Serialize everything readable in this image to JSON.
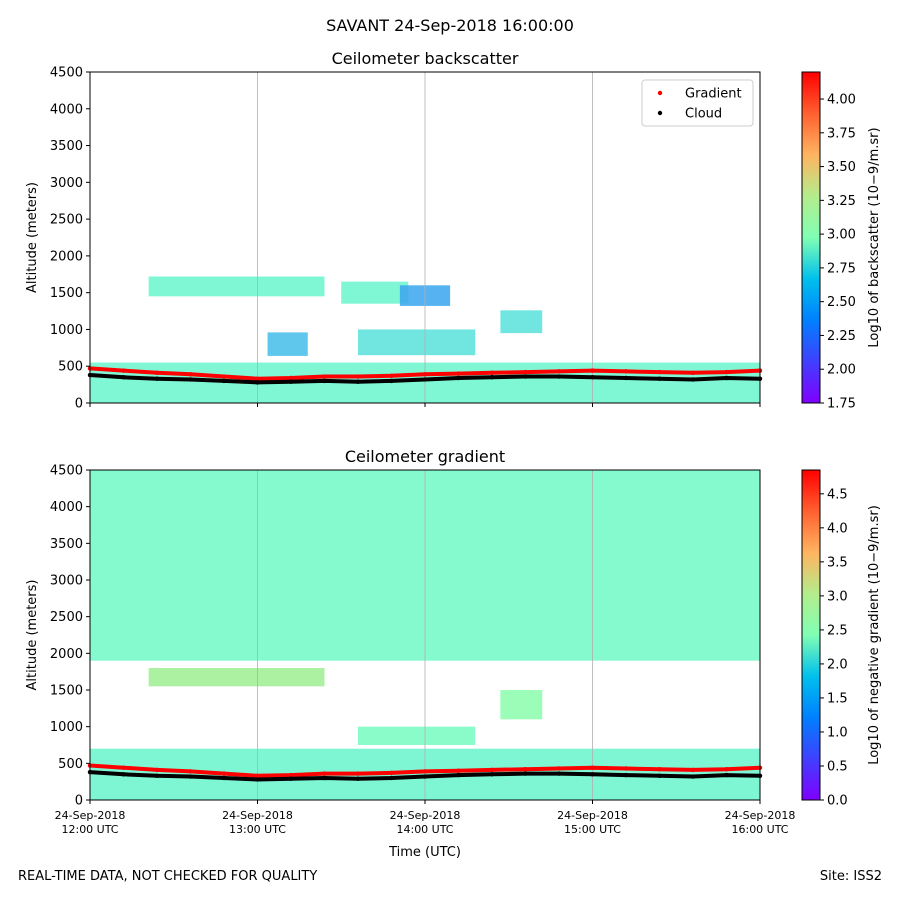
{
  "figure": {
    "suptitle": "SAVANT 24-Sep-2018 16:00:00",
    "footer_left": "REAL-TIME DATA, NOT CHECKED FOR QUALITY",
    "footer_right": "Site: ISS2"
  },
  "chart_data": [
    {
      "type": "heatmap",
      "title": "Ceilometer backscatter",
      "xlabel": "",
      "ylabel": "Altitude (meters)",
      "x_ticks": [
        "24-Sep-2018\n12:00 UTC",
        "24-Sep-2018\n13:00 UTC",
        "24-Sep-2018\n14:00 UTC",
        "24-Sep-2018\n15:00 UTC",
        "24-Sep-2018\n16:00 UTC"
      ],
      "x_tick_labels_visible": false,
      "xlim": [
        12.0,
        16.0
      ],
      "y_ticks": [
        0,
        500,
        1000,
        1500,
        2000,
        2500,
        3000,
        3500,
        4000,
        4500
      ],
      "ylim": [
        0,
        4500
      ],
      "grid": "vertical",
      "colormap": "rainbow",
      "colorbar": {
        "label": "Log10 of backscatter (10−9/m.sr)",
        "range": [
          1.75,
          4.2
        ],
        "ticks": [
          "1.75",
          "2.00",
          "2.25",
          "2.50",
          "2.75",
          "3.00",
          "3.25",
          "3.50",
          "3.75",
          "4.00"
        ]
      },
      "legend": {
        "position": "top-right",
        "entries": [
          {
            "name": "Gradient",
            "color": "#ff0000"
          },
          {
            "name": "Cloud",
            "color": "#000000"
          }
        ]
      },
      "regions": [
        {
          "t0": 12.0,
          "t1": 16.0,
          "z0": 0,
          "z1": 550,
          "value": 2.75
        },
        {
          "t0": 12.35,
          "t1": 13.4,
          "z0": 1450,
          "z1": 1720,
          "value": 2.75
        },
        {
          "t0": 13.06,
          "t1": 13.3,
          "z0": 640,
          "z1": 960,
          "value": 2.4
        },
        {
          "t0": 13.5,
          "t1": 13.9,
          "z0": 1350,
          "z1": 1650,
          "value": 2.75
        },
        {
          "t0": 13.85,
          "t1": 14.15,
          "z0": 1320,
          "z1": 1600,
          "value": 2.3
        },
        {
          "t0": 13.6,
          "t1": 14.3,
          "z0": 650,
          "z1": 1000,
          "value": 2.6
        },
        {
          "t0": 14.45,
          "t1": 14.7,
          "z0": 950,
          "z1": 1260,
          "value": 2.6
        }
      ],
      "series": [
        {
          "name": "Gradient",
          "x": [
            12.0,
            12.2,
            12.4,
            12.6,
            12.8,
            13.0,
            13.2,
            13.4,
            13.6,
            13.8,
            14.0,
            14.2,
            14.4,
            14.6,
            14.8,
            15.0,
            15.2,
            15.4,
            15.6,
            15.8,
            16.0
          ],
          "y": [
            470,
            440,
            410,
            390,
            360,
            330,
            340,
            360,
            360,
            370,
            390,
            400,
            410,
            420,
            430,
            440,
            430,
            420,
            410,
            420,
            440
          ]
        },
        {
          "name": "Cloud",
          "x": [
            12.0,
            12.2,
            12.4,
            12.6,
            12.8,
            13.0,
            13.2,
            13.4,
            13.6,
            13.8,
            14.0,
            14.2,
            14.4,
            14.6,
            14.8,
            15.0,
            15.2,
            15.4,
            15.6,
            15.8,
            16.0
          ],
          "y": [
            380,
            350,
            330,
            320,
            300,
            280,
            290,
            300,
            290,
            300,
            320,
            340,
            350,
            360,
            360,
            350,
            340,
            330,
            320,
            340,
            330
          ]
        }
      ]
    },
    {
      "type": "heatmap",
      "title": "Ceilometer gradient",
      "xlabel": "Time (UTC)",
      "ylabel": "Altitude (meters)",
      "x_ticks": [
        "24-Sep-2018\n12:00 UTC",
        "24-Sep-2018\n13:00 UTC",
        "24-Sep-2018\n14:00 UTC",
        "24-Sep-2018\n15:00 UTC",
        "24-Sep-2018\n16:00 UTC"
      ],
      "xlim": [
        12.0,
        16.0
      ],
      "y_ticks": [
        0,
        500,
        1000,
        1500,
        2000,
        2500,
        3000,
        3500,
        4000,
        4500
      ],
      "ylim": [
        0,
        4500
      ],
      "grid": "vertical",
      "colormap": "rainbow",
      "colorbar": {
        "label": "Log10 of negative gradient (10−9/m.sr)",
        "range": [
          0.0,
          4.85
        ],
        "ticks": [
          "0.0",
          "0.5",
          "1.0",
          "1.5",
          "2.0",
          "2.5",
          "3.0",
          "3.5",
          "4.0",
          "4.5"
        ]
      },
      "regions": [
        {
          "t0": 12.0,
          "t1": 16.0,
          "z0": 1900,
          "z1": 4500,
          "value": 2.1
        },
        {
          "t0": 12.0,
          "t1": 16.0,
          "z0": 0,
          "z1": 700,
          "value": 2.0
        },
        {
          "t0": 12.35,
          "t1": 13.4,
          "z0": 1550,
          "z1": 1800,
          "value": 3.0
        },
        {
          "t0": 13.6,
          "t1": 14.3,
          "z0": 750,
          "z1": 1000,
          "value": 2.2
        },
        {
          "t0": 14.45,
          "t1": 14.7,
          "z0": 1100,
          "z1": 1500,
          "value": 2.6
        }
      ],
      "series": [
        {
          "name": "Gradient",
          "x": [
            12.0,
            12.2,
            12.4,
            12.6,
            12.8,
            13.0,
            13.2,
            13.4,
            13.6,
            13.8,
            14.0,
            14.2,
            14.4,
            14.6,
            14.8,
            15.0,
            15.2,
            15.4,
            15.6,
            15.8,
            16.0
          ],
          "y": [
            470,
            440,
            410,
            390,
            360,
            330,
            340,
            360,
            360,
            370,
            390,
            400,
            410,
            420,
            430,
            440,
            430,
            420,
            410,
            420,
            440
          ]
        },
        {
          "name": "Cloud",
          "x": [
            12.0,
            12.2,
            12.4,
            12.6,
            12.8,
            13.0,
            13.2,
            13.4,
            13.6,
            13.8,
            14.0,
            14.2,
            14.4,
            14.6,
            14.8,
            15.0,
            15.2,
            15.4,
            15.6,
            15.8,
            16.0
          ],
          "y": [
            380,
            350,
            330,
            320,
            300,
            280,
            290,
            300,
            290,
            300,
            320,
            340,
            350,
            360,
            360,
            350,
            340,
            330,
            320,
            340,
            330
          ]
        }
      ]
    }
  ]
}
